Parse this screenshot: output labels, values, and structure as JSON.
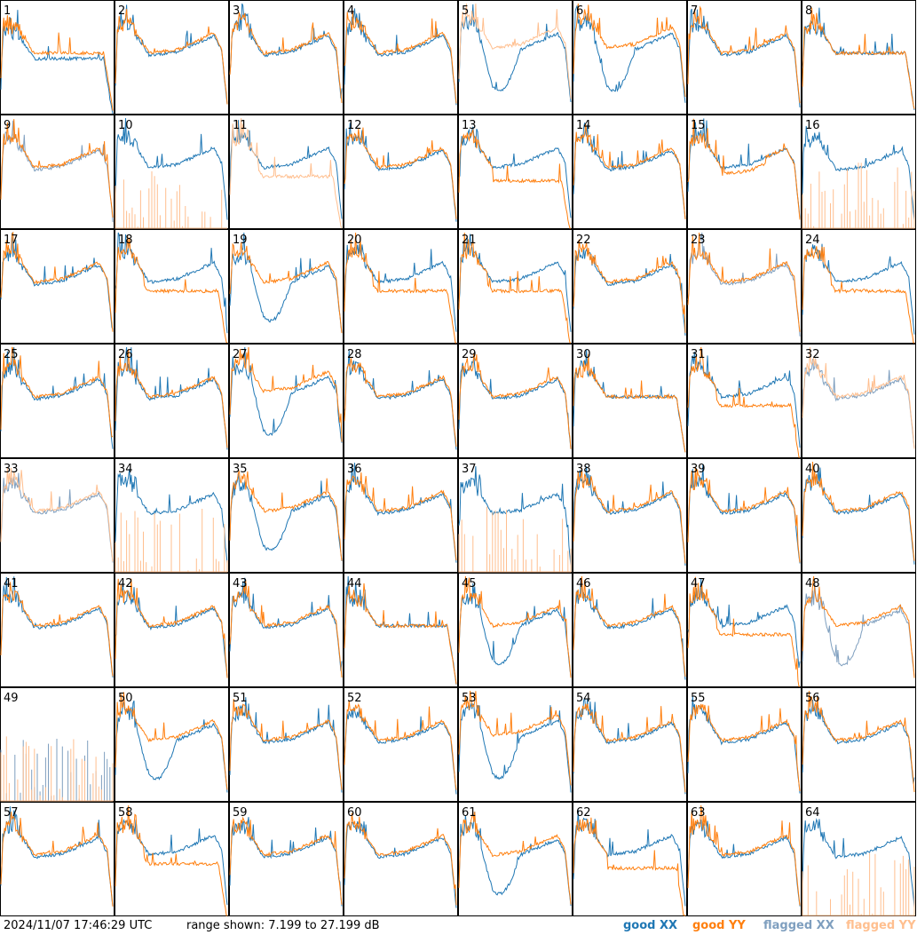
{
  "footer": {
    "timestamp": "2024/11/07 17:46:29 UTC",
    "range_text": "range shown: 7.199 to 27.199 dB"
  },
  "legend": {
    "good_xx": "good XX",
    "good_yy": "good YY",
    "flagged_xx": "flagged XX",
    "flagged_yy": "flagged YY"
  },
  "colors": {
    "good_xx": "#1f77b4",
    "good_yy": "#ff7f0e",
    "flagged_xx": "#7f9fbf",
    "flagged_yy": "#ffbf8f"
  },
  "chart_data": {
    "type": "line",
    "layout": "8x8 small multiples",
    "y_range_db": [
      7.199,
      27.199
    ],
    "panels": [
      {
        "label": "1",
        "xx": "good",
        "yy": "good",
        "shape": "flat_x_lower"
      },
      {
        "label": "2",
        "xx": "good",
        "yy": "good",
        "shape": "std"
      },
      {
        "label": "3",
        "xx": "good",
        "yy": "good",
        "shape": "std"
      },
      {
        "label": "4",
        "xx": "good",
        "yy": "good",
        "shape": "std"
      },
      {
        "label": "5",
        "xx": "good",
        "yy": "flagged",
        "shape": "deep_dip_x"
      },
      {
        "label": "6",
        "xx": "good",
        "yy": "good",
        "shape": "deep_dip_x"
      },
      {
        "label": "7",
        "xx": "good",
        "yy": "good",
        "shape": "std"
      },
      {
        "label": "8",
        "xx": "good",
        "yy": "good",
        "shape": "flat"
      },
      {
        "label": "9",
        "xx": "flagged",
        "yy": "good",
        "shape": "std"
      },
      {
        "label": "10",
        "xx": "good",
        "yy": "flagged",
        "shape": "y_lower"
      },
      {
        "label": "11",
        "xx": "good",
        "yy": "flagged",
        "shape": "y_lower"
      },
      {
        "label": "12",
        "xx": "good",
        "yy": "good",
        "shape": "std"
      },
      {
        "label": "13",
        "xx": "good",
        "yy": "good",
        "shape": "y_lower_end_drop"
      },
      {
        "label": "14",
        "xx": "good",
        "yy": "good",
        "shape": "std"
      },
      {
        "label": "15",
        "xx": "good",
        "yy": "good",
        "shape": "y_lower_mid"
      },
      {
        "label": "16",
        "xx": "good",
        "yy": "flagged",
        "shape": "std"
      },
      {
        "label": "17",
        "xx": "good",
        "yy": "good",
        "shape": "std"
      },
      {
        "label": "18",
        "xx": "good",
        "yy": "good",
        "shape": "y_lower"
      },
      {
        "label": "19",
        "xx": "good",
        "yy": "good",
        "shape": "x_lower_dip"
      },
      {
        "label": "20",
        "xx": "good",
        "yy": "good",
        "shape": "y_lower"
      },
      {
        "label": "21",
        "xx": "good",
        "yy": "good",
        "shape": "y_lower"
      },
      {
        "label": "22",
        "xx": "good",
        "yy": "good",
        "shape": "std"
      },
      {
        "label": "23",
        "xx": "flagged",
        "yy": "good",
        "shape": "std"
      },
      {
        "label": "24",
        "xx": "good",
        "yy": "good",
        "shape": "y_lower"
      },
      {
        "label": "25",
        "xx": "good",
        "yy": "good",
        "shape": "std"
      },
      {
        "label": "26",
        "xx": "good",
        "yy": "good",
        "shape": "std"
      },
      {
        "label": "27",
        "xx": "good",
        "yy": "good",
        "shape": "deep_dip_x"
      },
      {
        "label": "28",
        "xx": "good",
        "yy": "good",
        "shape": "std"
      },
      {
        "label": "29",
        "xx": "good",
        "yy": "good",
        "shape": "std"
      },
      {
        "label": "30",
        "xx": "good",
        "yy": "good",
        "shape": "flat"
      },
      {
        "label": "31",
        "xx": "good",
        "yy": "good",
        "shape": "y_lower"
      },
      {
        "label": "32",
        "xx": "flagged",
        "yy": "flagged",
        "shape": "std"
      },
      {
        "label": "33",
        "xx": "flagged",
        "yy": "flagged",
        "shape": "std"
      },
      {
        "label": "34",
        "xx": "good",
        "yy": "flagged",
        "shape": "std"
      },
      {
        "label": "35",
        "xx": "good",
        "yy": "good",
        "shape": "x_lower_dip"
      },
      {
        "label": "36",
        "xx": "good",
        "yy": "good",
        "shape": "std"
      },
      {
        "label": "37",
        "xx": "good",
        "yy": "flagged",
        "shape": "std"
      },
      {
        "label": "38",
        "xx": "good",
        "yy": "good",
        "shape": "std"
      },
      {
        "label": "39",
        "xx": "good",
        "yy": "good",
        "shape": "std"
      },
      {
        "label": "40",
        "xx": "good",
        "yy": "good",
        "shape": "std"
      },
      {
        "label": "41",
        "xx": "good",
        "yy": "good",
        "shape": "std"
      },
      {
        "label": "42",
        "xx": "good",
        "yy": "good",
        "shape": "std"
      },
      {
        "label": "43",
        "xx": "good",
        "yy": "good",
        "shape": "std"
      },
      {
        "label": "44",
        "xx": "good",
        "yy": "good",
        "shape": "flat"
      },
      {
        "label": "45",
        "xx": "good",
        "yy": "good",
        "shape": "x_lower_dip"
      },
      {
        "label": "46",
        "xx": "good",
        "yy": "good",
        "shape": "std"
      },
      {
        "label": "47",
        "xx": "good",
        "yy": "good",
        "shape": "y_lower"
      },
      {
        "label": "48",
        "xx": "flagged",
        "yy": "good",
        "shape": "x_lower_dip"
      },
      {
        "label": "49",
        "xx": "flagged",
        "yy": "flagged",
        "shape": "flat"
      },
      {
        "label": "50",
        "xx": "good",
        "yy": "good",
        "shape": "x_lower_dip"
      },
      {
        "label": "51",
        "xx": "good",
        "yy": "good",
        "shape": "std"
      },
      {
        "label": "52",
        "xx": "good",
        "yy": "good",
        "shape": "std"
      },
      {
        "label": "53",
        "xx": "good",
        "yy": "good",
        "shape": "deep_dip_x"
      },
      {
        "label": "54",
        "xx": "good",
        "yy": "good",
        "shape": "std"
      },
      {
        "label": "55",
        "xx": "good",
        "yy": "good",
        "shape": "std"
      },
      {
        "label": "56",
        "xx": "good",
        "yy": "good",
        "shape": "std"
      },
      {
        "label": "57",
        "xx": "good",
        "yy": "good",
        "shape": "std"
      },
      {
        "label": "58",
        "xx": "good",
        "yy": "good",
        "shape": "y_lower"
      },
      {
        "label": "59",
        "xx": "good",
        "yy": "good",
        "shape": "std"
      },
      {
        "label": "60",
        "xx": "good",
        "yy": "good",
        "shape": "std"
      },
      {
        "label": "61",
        "xx": "good",
        "yy": "good",
        "shape": "x_lower_dip"
      },
      {
        "label": "62",
        "xx": "good",
        "yy": "good",
        "shape": "y_lower_end_drop"
      },
      {
        "label": "63",
        "xx": "good",
        "yy": "good",
        "shape": "std"
      },
      {
        "label": "64",
        "xx": "good",
        "yy": "flagged",
        "shape": "std"
      }
    ]
  }
}
